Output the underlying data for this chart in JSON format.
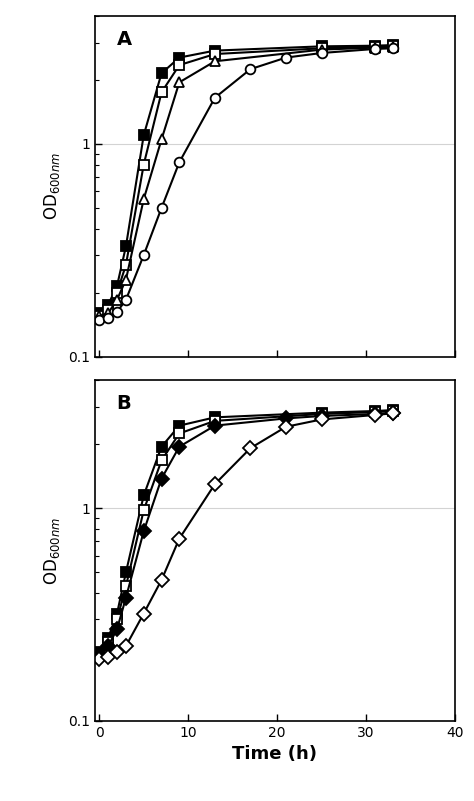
{
  "panel_A": {
    "label": "A",
    "series": [
      {
        "name": "filled_square",
        "marker": "s",
        "filled": true,
        "x": [
          0,
          1,
          2,
          3,
          5,
          7,
          9,
          13,
          25,
          31,
          33
        ],
        "y": [
          0.16,
          0.175,
          0.215,
          0.33,
          1.1,
          2.15,
          2.55,
          2.75,
          2.88,
          2.9,
          2.92
        ]
      },
      {
        "name": "open_square",
        "marker": "s",
        "filled": false,
        "x": [
          0,
          1,
          2,
          3,
          5,
          7,
          9,
          13,
          25,
          31,
          33
        ],
        "y": [
          0.155,
          0.165,
          0.2,
          0.27,
          0.8,
          1.75,
          2.35,
          2.65,
          2.82,
          2.87,
          2.88
        ]
      },
      {
        "name": "open_triangle",
        "marker": "^",
        "filled": false,
        "x": [
          0,
          1,
          2,
          3,
          5,
          7,
          9,
          13,
          25,
          31,
          33
        ],
        "y": [
          0.155,
          0.16,
          0.185,
          0.23,
          0.55,
          1.05,
          1.95,
          2.45,
          2.78,
          2.84,
          2.87
        ]
      },
      {
        "name": "open_circle",
        "marker": "o",
        "filled": false,
        "x": [
          0,
          1,
          2,
          3,
          5,
          7,
          9,
          13,
          17,
          21,
          25,
          31,
          33
        ],
        "y": [
          0.148,
          0.152,
          0.162,
          0.185,
          0.3,
          0.5,
          0.82,
          1.65,
          2.25,
          2.55,
          2.68,
          2.8,
          2.82
        ]
      }
    ]
  },
  "panel_B": {
    "label": "B",
    "series": [
      {
        "name": "filled_square",
        "marker": "s",
        "filled": true,
        "x": [
          0,
          1,
          2,
          3,
          5,
          7,
          9,
          13,
          25,
          31,
          33
        ],
        "y": [
          0.21,
          0.245,
          0.32,
          0.5,
          1.15,
          1.95,
          2.45,
          2.68,
          2.82,
          2.87,
          2.9
        ]
      },
      {
        "name": "open_square",
        "marker": "s",
        "filled": false,
        "x": [
          0,
          1,
          2,
          3,
          5,
          7,
          9,
          13,
          25,
          31,
          33
        ],
        "y": [
          0.205,
          0.235,
          0.3,
          0.43,
          0.98,
          1.68,
          2.25,
          2.58,
          2.78,
          2.84,
          2.88
        ]
      },
      {
        "name": "filled_diamond",
        "marker": "D",
        "filled": true,
        "x": [
          0,
          1,
          2,
          3,
          5,
          7,
          9,
          13,
          21,
          25,
          31,
          33
        ],
        "y": [
          0.205,
          0.225,
          0.27,
          0.38,
          0.78,
          1.38,
          1.95,
          2.45,
          2.65,
          2.72,
          2.78,
          2.82
        ]
      },
      {
        "name": "open_diamond",
        "marker": "D",
        "filled": false,
        "x": [
          0,
          1,
          2,
          3,
          5,
          7,
          9,
          13,
          17,
          21,
          25,
          31,
          33
        ],
        "y": [
          0.195,
          0.2,
          0.21,
          0.225,
          0.32,
          0.46,
          0.72,
          1.3,
          1.92,
          2.42,
          2.62,
          2.75,
          2.8
        ]
      }
    ]
  },
  "ylim": [
    0.1,
    4.0
  ],
  "xlim": [
    -0.5,
    37
  ],
  "xticks": [
    0,
    10,
    20,
    30,
    40
  ],
  "ylabel": "OD$_{600nm}$",
  "xlabel": "Time (h)",
  "line_color": "black",
  "marker_size": 7,
  "line_width": 1.5
}
